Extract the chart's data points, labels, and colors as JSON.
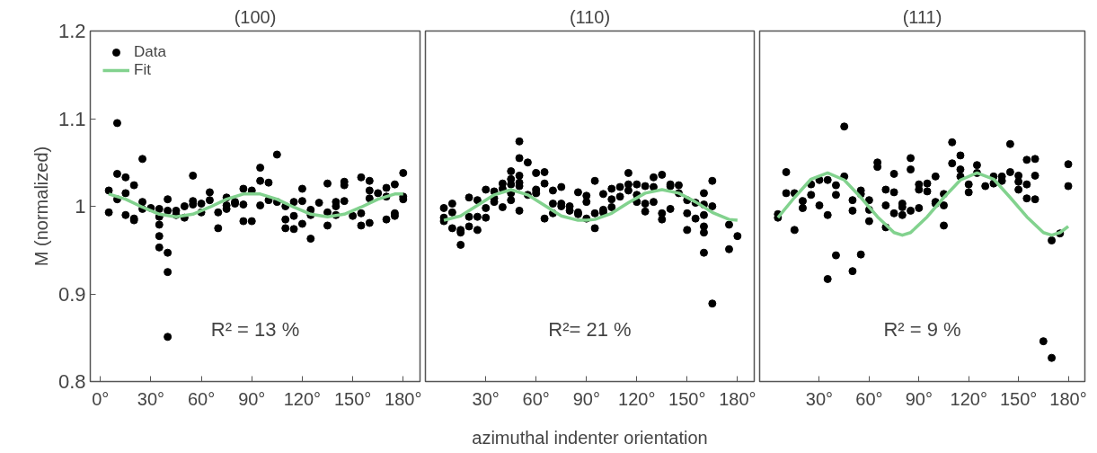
{
  "chart_data": [
    {
      "type": "scatter",
      "title": "(100)",
      "ylabel": "M (normalized)",
      "annotations": [
        "R² = 13 %"
      ],
      "legend": "top left",
      "xlim": [
        -6,
        190
      ],
      "xticks": [
        {
          "value": 0,
          "label": "0°"
        },
        {
          "value": 30,
          "label": "30°"
        },
        {
          "value": 60,
          "label": "60°"
        },
        {
          "value": 90,
          "label": "90°"
        },
        {
          "value": 120,
          "label": "120°"
        },
        {
          "value": 150,
          "label": "150°"
        },
        {
          "value": 180,
          "label": "180°"
        }
      ],
      "ylim": [
        0.8,
        1.2
      ],
      "yticks": [
        0.8,
        0.9,
        1,
        1.1,
        1.2
      ],
      "series": [
        {
          "name": "Data",
          "marker": "circle",
          "color": "#000000",
          "x": [
            5,
            5,
            10,
            10,
            10,
            15,
            15,
            15,
            20,
            20,
            20,
            25,
            25,
            25,
            30,
            35,
            35,
            35,
            35,
            35,
            40,
            40,
            40,
            40,
            40,
            45,
            45,
            50,
            50,
            55,
            55,
            55,
            60,
            60,
            65,
            65,
            70,
            70,
            75,
            75,
            75,
            80,
            80,
            85,
            85,
            85,
            90,
            90,
            95,
            95,
            95,
            100,
            100,
            105,
            105,
            110,
            110,
            110,
            115,
            115,
            115,
            120,
            120,
            120,
            125,
            125,
            125,
            130,
            135,
            135,
            135,
            140,
            140,
            140,
            145,
            145,
            145,
            150,
            155,
            155,
            155,
            160,
            160,
            160,
            160,
            165,
            170,
            170,
            170,
            175,
            175,
            175,
            180,
            180,
            180
          ],
          "values": [
            1.018,
            0.993,
            1.095,
            1.037,
            1.008,
            1.033,
            1.015,
            0.99,
            1.024,
            0.986,
            0.984,
            1.054,
            1.005,
            0.997,
            0.998,
            0.997,
            0.988,
            0.979,
            0.966,
            0.953,
            1.008,
            0.995,
            0.947,
            0.925,
            0.851,
            0.995,
            0.99,
            1.0,
            0.987,
            1.035,
            1.006,
            1.002,
            1.003,
            0.993,
            1.016,
            1.007,
            0.993,
            0.975,
            1.01,
            1.001,
            0.997,
            1.005,
            1.003,
            1.02,
            1.002,
            0.983,
            1.018,
            0.983,
            1.044,
            1.029,
            1.001,
            1.027,
            1.007,
            1.059,
            1.005,
            1.0,
            0.985,
            0.975,
            1.005,
            0.989,
            0.974,
            1.02,
            1.006,
            0.98,
            0.996,
            0.99,
            0.963,
            1.004,
            1.026,
            0.993,
            0.978,
            1.005,
            1.0,
            0.99,
            1.028,
            1.024,
            1.006,
            0.989,
            1.033,
            0.992,
            0.978,
            1.029,
            1.018,
            1.009,
            0.981,
            1.015,
            1.021,
            1.011,
            0.985,
            1.025,
            0.992,
            0.989,
            1.038,
            1.011,
            1.008
          ]
        },
        {
          "name": "Fit",
          "type": "line",
          "color": "#82d28e",
          "x": [
            5,
            15,
            25,
            35,
            45,
            55,
            65,
            75,
            85,
            95,
            105,
            115,
            125,
            135,
            145,
            155,
            165,
            175,
            180
          ],
          "values": [
            1.014,
            1.008,
            0.999,
            0.991,
            0.988,
            0.991,
            0.999,
            1.008,
            1.014,
            1.014,
            1.008,
            0.999,
            0.991,
            0.988,
            0.991,
            0.999,
            1.008,
            1.014,
            1.014
          ]
        }
      ]
    },
    {
      "type": "scatter",
      "title": "(110)",
      "xlabel": "azimuthal indenter orientation",
      "annotations": [
        "R²= 21 %"
      ],
      "tick_labels": "x",
      "xlim": [
        -6,
        190
      ],
      "xticks": [
        {
          "value": 30,
          "label": "30°"
        },
        {
          "value": 60,
          "label": "60°"
        },
        {
          "value": 90,
          "label": "90°"
        },
        {
          "value": 120,
          "label": "120°"
        },
        {
          "value": 150,
          "label": "150°"
        },
        {
          "value": 180,
          "label": "180°"
        }
      ],
      "ylim": [
        0.8,
        1.2
      ],
      "series": [
        {
          "marker": "circle",
          "color": "#000000",
          "x": [
            5,
            5,
            5,
            10,
            10,
            10,
            15,
            15,
            15,
            20,
            20,
            20,
            25,
            25,
            25,
            30,
            30,
            30,
            35,
            35,
            35,
            40,
            40,
            40,
            45,
            45,
            45,
            45,
            45,
            50,
            50,
            50,
            50,
            50,
            50,
            55,
            55,
            60,
            60,
            60,
            65,
            65,
            65,
            70,
            70,
            70,
            75,
            75,
            75,
            80,
            80,
            85,
            85,
            85,
            90,
            90,
            90,
            95,
            95,
            95,
            100,
            100,
            100,
            105,
            105,
            105,
            110,
            110,
            115,
            115,
            115,
            120,
            120,
            120,
            125,
            125,
            125,
            130,
            130,
            130,
            135,
            135,
            135,
            140,
            140,
            140,
            145,
            145,
            150,
            150,
            150,
            155,
            155,
            160,
            160,
            160,
            160,
            160,
            160,
            165,
            165,
            165,
            175,
            175,
            180
          ],
          "values": [
            0.998,
            0.987,
            0.983,
            1.003,
            0.993,
            0.975,
            0.973,
            0.97,
            0.956,
            1.01,
            0.988,
            0.977,
            1.007,
            0.988,
            0.973,
            1.019,
            0.998,
            0.987,
            1.017,
            1.009,
            1.005,
            1.026,
            1.02,
            0.999,
            1.04,
            1.031,
            1.025,
            1.015,
            1.007,
            1.074,
            1.055,
            1.035,
            1.027,
            1.023,
            0.995,
            1.05,
            1.013,
            1.038,
            1.019,
            1.015,
            1.039,
            1.026,
            0.986,
            1.018,
            1.003,
            0.992,
            1.022,
            1.003,
            1.0,
            1.0,
            0.995,
            1.016,
            0.993,
            0.991,
            1.012,
            1.005,
            0.986,
            1.029,
            0.992,
            0.975,
            1.014,
            0.996,
            0.993,
            1.02,
            1.008,
            0.999,
            1.022,
            1.011,
            1.038,
            1.025,
            1.018,
            1.025,
            1.013,
            1.005,
            1.023,
            1.003,
            0.994,
            1.033,
            1.022,
            1.005,
            1.036,
            0.992,
            0.985,
            1.025,
            1.023,
            0.997,
            1.024,
            1.015,
            1.007,
            0.992,
            0.973,
            1.004,
            0.986,
            1.015,
            1.002,
            0.99,
            0.977,
            0.97,
            0.947,
            1.029,
            1.0,
            0.889,
            0.979,
            0.951,
            0.966
          ]
        },
        {
          "type": "line",
          "color": "#82d28e",
          "x": [
            5,
            15,
            25,
            35,
            45,
            55,
            65,
            75,
            85,
            90,
            95,
            105,
            115,
            125,
            135,
            145,
            155,
            165,
            175,
            180
          ],
          "values": [
            0.984,
            0.989,
            1.001,
            1.013,
            1.019,
            1.013,
            1.001,
            0.989,
            0.984,
            0.984,
            0.985,
            0.992,
            1.004,
            1.015,
            1.019,
            1.015,
            1.005,
            0.993,
            0.985,
            0.984
          ]
        }
      ]
    },
    {
      "type": "scatter",
      "title": "(111)",
      "annotations": [
        "R² = 9 %"
      ],
      "tick_labels": "x",
      "xlim": [
        -6,
        190
      ],
      "xticks": [
        {
          "value": 30,
          "label": "30°"
        },
        {
          "value": 60,
          "label": "60°"
        },
        {
          "value": 90,
          "label": "90°"
        },
        {
          "value": 120,
          "label": "120°"
        },
        {
          "value": 150,
          "label": "150°"
        },
        {
          "value": 180,
          "label": "180°"
        }
      ],
      "ylim": [
        0.8,
        1.2
      ],
      "series": [
        {
          "marker": "circle",
          "color": "#000000",
          "x": [
            5,
            5,
            10,
            10,
            15,
            15,
            20,
            20,
            25,
            25,
            30,
            30,
            35,
            35,
            35,
            40,
            40,
            40,
            45,
            45,
            50,
            50,
            50,
            55,
            55,
            55,
            60,
            60,
            60,
            65,
            65,
            70,
            70,
            70,
            75,
            75,
            75,
            80,
            80,
            80,
            85,
            85,
            85,
            90,
            90,
            90,
            95,
            95,
            100,
            100,
            100,
            105,
            105,
            105,
            110,
            110,
            115,
            115,
            115,
            120,
            120,
            125,
            125,
            130,
            135,
            135,
            140,
            140,
            145,
            145,
            150,
            150,
            150,
            155,
            155,
            155,
            160,
            160,
            160,
            165,
            170,
            170,
            175,
            180,
            180
          ],
          "values": [
            0.991,
            0.987,
            1.039,
            1.015,
            1.015,
            0.973,
            1.006,
            0.998,
            1.025,
            1.013,
            1.03,
            1.001,
            1.03,
            0.99,
            0.917,
            1.024,
            1.013,
            0.944,
            1.091,
            1.034,
            1.007,
            0.995,
            0.926,
            1.018,
            1.014,
            0.945,
            1.007,
            0.996,
            0.983,
            1.05,
            1.045,
            1.019,
            1.001,
            0.976,
            1.037,
            1.016,
            0.992,
            1.003,
            0.999,
            0.99,
            1.055,
            1.042,
            0.995,
            1.025,
            1.019,
            0.998,
            1.026,
            1.017,
            1.034,
            1.005,
            1.003,
            1.014,
            1.001,
            0.978,
            1.073,
            1.049,
            1.058,
            1.042,
            1.034,
            1.025,
            1.016,
            1.047,
            1.038,
            1.023,
            1.034,
            1.026,
            1.034,
            1.029,
            1.071,
            1.039,
            1.035,
            1.028,
            1.019,
            1.053,
            1.025,
            1.009,
            1.054,
            1.035,
            1.008,
            0.846,
            0.961,
            0.827,
            0.969,
            1.048,
            1.023
          ]
        },
        {
          "type": "line",
          "color": "#82d28e",
          "x": [
            5,
            15,
            25,
            35,
            45,
            55,
            65,
            75,
            80,
            85,
            95,
            105,
            115,
            125,
            135,
            145,
            155,
            165,
            170,
            175,
            180
          ],
          "values": [
            0.987,
            1.01,
            1.031,
            1.038,
            1.03,
            1.01,
            0.988,
            0.97,
            0.967,
            0.97,
            0.988,
            1.01,
            1.03,
            1.038,
            1.031,
            1.01,
            0.988,
            0.97,
            0.967,
            0.97,
            0.977
          ]
        }
      ]
    }
  ]
}
